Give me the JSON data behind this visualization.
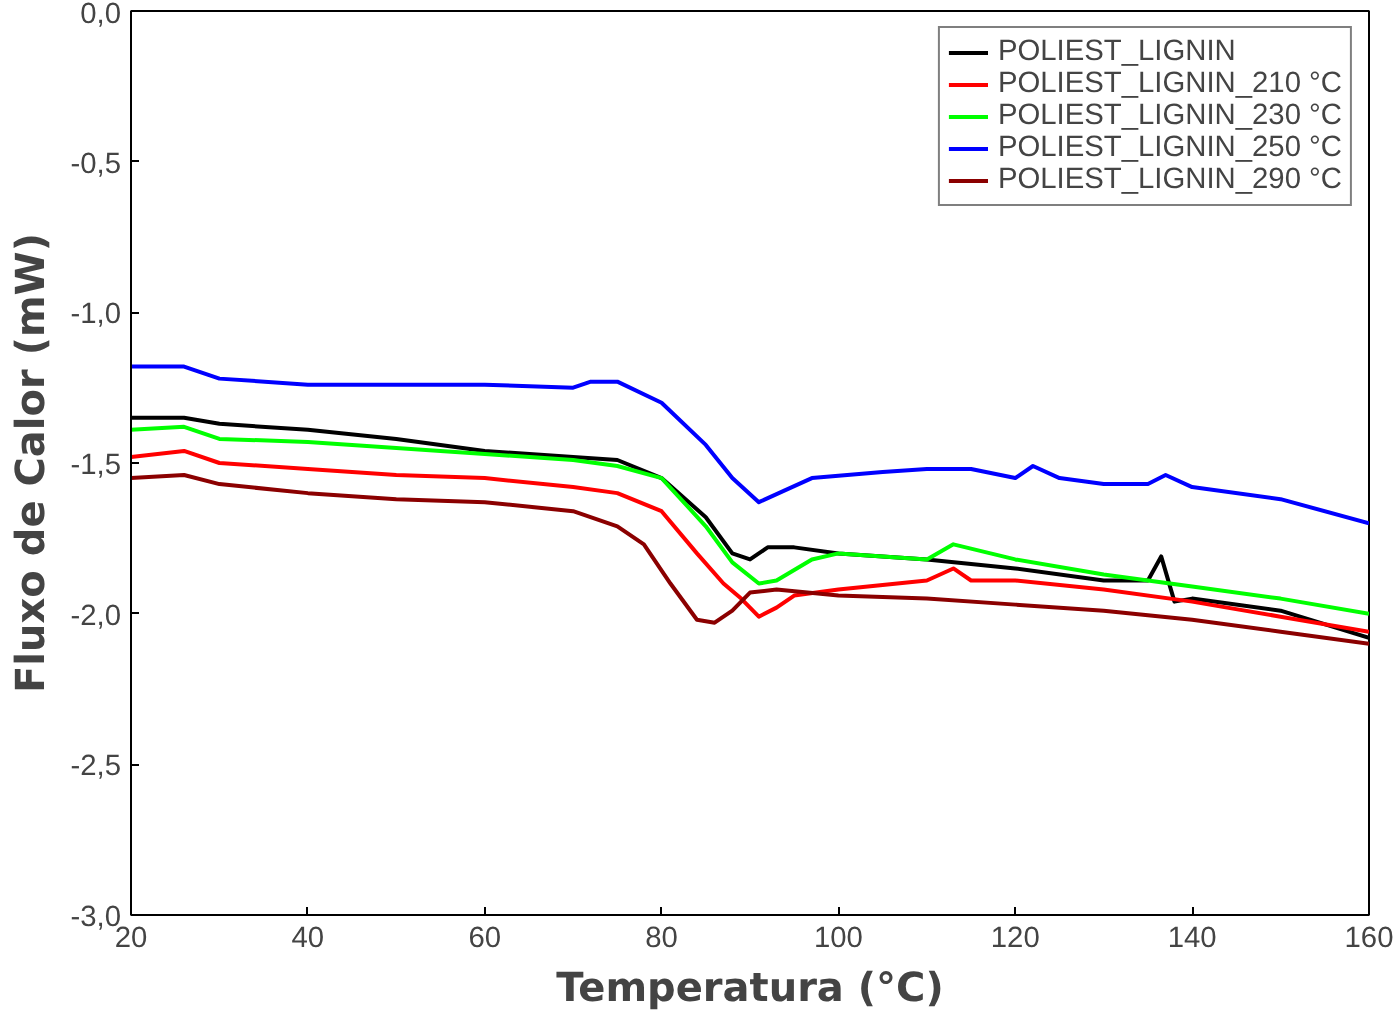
{
  "chart_data": {
    "type": "line",
    "xlabel": "Temperatura (°C)",
    "ylabel": "Fluxo de Calor (mW)",
    "xlim": [
      20,
      160
    ],
    "ylim": [
      -3.0,
      0.0
    ],
    "xticks": [
      20,
      40,
      60,
      80,
      100,
      120,
      140,
      160
    ],
    "yticks": [
      {
        "value": -3.0,
        "label": "-3,0"
      },
      {
        "value": -2.5,
        "label": "-2,5"
      },
      {
        "value": -2.0,
        "label": "-2,0"
      },
      {
        "value": -1.5,
        "label": "-1,5"
      },
      {
        "value": -1.0,
        "label": "-1,0"
      },
      {
        "value": -0.5,
        "label": "-0,5"
      },
      {
        "value": 0.0,
        "label": "0,0"
      }
    ],
    "grid": false,
    "legend": "top right",
    "line_style": "solid",
    "marker": "none",
    "series": [
      {
        "name": "POLIEST_LIGNIN",
        "color": "#000000",
        "x": [
          20,
          26,
          30,
          40,
          50,
          60,
          70,
          75,
          80,
          85,
          88,
          90,
          92,
          95,
          100,
          110,
          120,
          130,
          135,
          136.5,
          138,
          140,
          150,
          160
        ],
        "values": [
          -1.35,
          -1.35,
          -1.37,
          -1.39,
          -1.42,
          -1.46,
          -1.48,
          -1.49,
          -1.55,
          -1.68,
          -1.8,
          -1.82,
          -1.78,
          -1.78,
          -1.8,
          -1.82,
          -1.85,
          -1.89,
          -1.89,
          -1.81,
          -1.96,
          -1.95,
          -1.99,
          -2.08
        ]
      },
      {
        "name": "POLIEST_LIGNIN_210 °C",
        "color": "#ff0000",
        "x": [
          20,
          26,
          30,
          40,
          50,
          60,
          70,
          75,
          80,
          84,
          87,
          89,
          91,
          93,
          95,
          100,
          110,
          113,
          115,
          120,
          130,
          140,
          150,
          160
        ],
        "values": [
          -1.48,
          -1.46,
          -1.5,
          -1.52,
          -1.54,
          -1.55,
          -1.58,
          -1.6,
          -1.66,
          -1.8,
          -1.9,
          -1.95,
          -2.01,
          -1.98,
          -1.94,
          -1.92,
          -1.89,
          -1.85,
          -1.89,
          -1.89,
          -1.92,
          -1.96,
          -2.01,
          -2.06
        ]
      },
      {
        "name": "POLIEST_LIGNIN_230 °C",
        "color": "#00ff00",
        "x": [
          20,
          26,
          30,
          40,
          50,
          60,
          70,
          75,
          80,
          85,
          88,
          91,
          93,
          97,
          100,
          110,
          113,
          120,
          130,
          140,
          150,
          160
        ],
        "values": [
          -1.39,
          -1.38,
          -1.42,
          -1.43,
          -1.45,
          -1.47,
          -1.49,
          -1.51,
          -1.55,
          -1.71,
          -1.83,
          -1.9,
          -1.89,
          -1.82,
          -1.8,
          -1.82,
          -1.77,
          -1.82,
          -1.87,
          -1.91,
          -1.95,
          -2.0
        ]
      },
      {
        "name": "POLIEST_LIGNIN_250 °C",
        "color": "#0000ff",
        "x": [
          20,
          26,
          30,
          40,
          60,
          70,
          72,
          75,
          80,
          85,
          88,
          91,
          94,
          97,
          105,
          110,
          115,
          120,
          122,
          125,
          130,
          135,
          137,
          140,
          150,
          160
        ],
        "values": [
          -1.18,
          -1.18,
          -1.22,
          -1.24,
          -1.24,
          -1.25,
          -1.23,
          -1.23,
          -1.3,
          -1.44,
          -1.55,
          -1.63,
          -1.59,
          -1.55,
          -1.53,
          -1.52,
          -1.52,
          -1.55,
          -1.51,
          -1.55,
          -1.57,
          -1.57,
          -1.54,
          -1.58,
          -1.62,
          -1.7
        ]
      },
      {
        "name": "POLIEST_LIGNIN_290 °C",
        "color": "#8b0000",
        "x": [
          20,
          26,
          30,
          40,
          50,
          60,
          70,
          75,
          78,
          81,
          84,
          86,
          88,
          90,
          93,
          100,
          110,
          120,
          130,
          140,
          150,
          160
        ],
        "values": [
          -1.55,
          -1.54,
          -1.57,
          -1.6,
          -1.62,
          -1.63,
          -1.66,
          -1.71,
          -1.77,
          -1.9,
          -2.02,
          -2.03,
          -1.99,
          -1.93,
          -1.92,
          -1.94,
          -1.95,
          -1.97,
          -1.99,
          -2.02,
          -2.06,
          -2.1
        ]
      }
    ]
  }
}
